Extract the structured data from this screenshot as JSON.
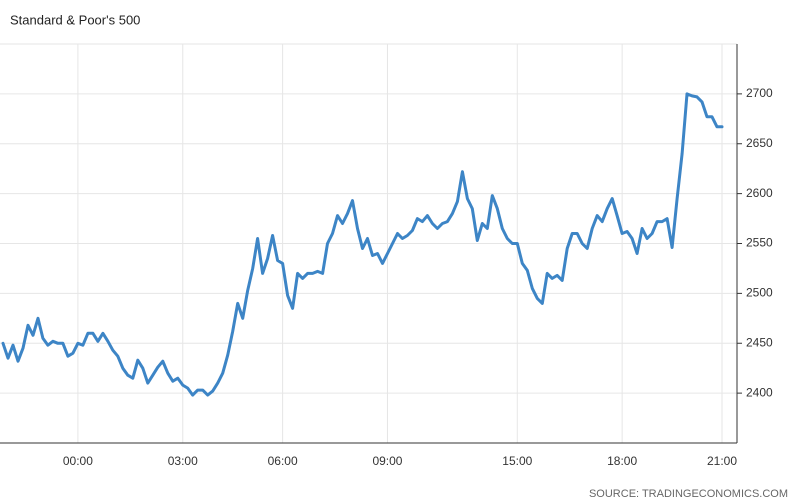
{
  "chart_data": {
    "type": "line",
    "title": "Standard & Poor's 500",
    "source": "SOURCE: TRADINGECONOMICS.COM",
    "categories": [
      null,
      null,
      null,
      null,
      null,
      null,
      null,
      null,
      null,
      null,
      null,
      null,
      null,
      null,
      null,
      "00:00",
      null,
      null,
      null,
      null,
      null,
      null,
      null,
      null,
      null,
      null,
      null,
      null,
      null,
      null,
      null,
      null,
      null,
      null,
      null,
      null,
      "03:00",
      null,
      null,
      null,
      null,
      null,
      null,
      null,
      null,
      null,
      null,
      null,
      null,
      null,
      null,
      null,
      null,
      null,
      null,
      null,
      "06:00",
      null,
      null,
      null,
      null,
      null,
      null,
      null,
      null,
      null,
      null,
      null,
      null,
      null,
      null,
      null,
      null,
      null,
      null,
      null,
      null,
      "09:00",
      null,
      null,
      null,
      null,
      null,
      null,
      null,
      null,
      null,
      null,
      null,
      null,
      null,
      null,
      null,
      null,
      null,
      null,
      null,
      null,
      null,
      null,
      null,
      null,
      null,
      "15:00",
      null,
      null,
      null,
      null,
      null,
      null,
      null,
      null,
      null,
      null,
      null,
      null,
      null,
      null,
      null,
      null,
      null,
      null,
      null,
      null,
      "18:00",
      null,
      null,
      null,
      null,
      null,
      null,
      null,
      null,
      null,
      null,
      null,
      null,
      null,
      null,
      null,
      null,
      null,
      null,
      null,
      "21:00"
    ],
    "series": [
      {
        "color": "#3d85c6",
        "values": [
          2450,
          2435,
          2448,
          2432,
          2445,
          2468,
          2458,
          2475,
          2455,
          2448,
          2452,
          2450,
          2450,
          2437,
          2440,
          2450,
          2448,
          2460,
          2460,
          2452,
          2460,
          2452,
          2443,
          2437,
          2425,
          2418,
          2415,
          2433,
          2425,
          2410,
          2418,
          2426,
          2432,
          2420,
          2412,
          2415,
          2408,
          2405,
          2398,
          2403,
          2403,
          2398,
          2402,
          2410,
          2420,
          2438,
          2462,
          2490,
          2475,
          2503,
          2525,
          2555,
          2520,
          2535,
          2558,
          2533,
          2530,
          2498,
          2485,
          2520,
          2515,
          2520,
          2520,
          2522,
          2520,
          2550,
          2560,
          2578,
          2570,
          2580,
          2593,
          2565,
          2545,
          2555,
          2538,
          2540,
          2530,
          2540,
          2550,
          2560,
          2555,
          2558,
          2563,
          2575,
          2572,
          2578,
          2570,
          2565,
          2570,
          2572,
          2580,
          2592,
          2622,
          2595,
          2585,
          2553,
          2570,
          2565,
          2598,
          2585,
          2565,
          2555,
          2550,
          2550,
          2530,
          2523,
          2505,
          2495,
          2490,
          2520,
          2515,
          2518,
          2513,
          2545,
          2560,
          2560,
          2550,
          2545,
          2565,
          2578,
          2572,
          2585,
          2595,
          2578,
          2560,
          2562,
          2555,
          2540,
          2565,
          2555,
          2560,
          2572,
          2572,
          2575,
          2546,
          2595,
          2640,
          2700,
          2698,
          2697,
          2692,
          2677,
          2677,
          2667,
          2667
        ]
      }
    ],
    "ylim": [
      2350,
      2750
    ],
    "yticks": [
      2400,
      2450,
      2500,
      2550,
      2600,
      2650,
      2700
    ],
    "grid": true
  }
}
